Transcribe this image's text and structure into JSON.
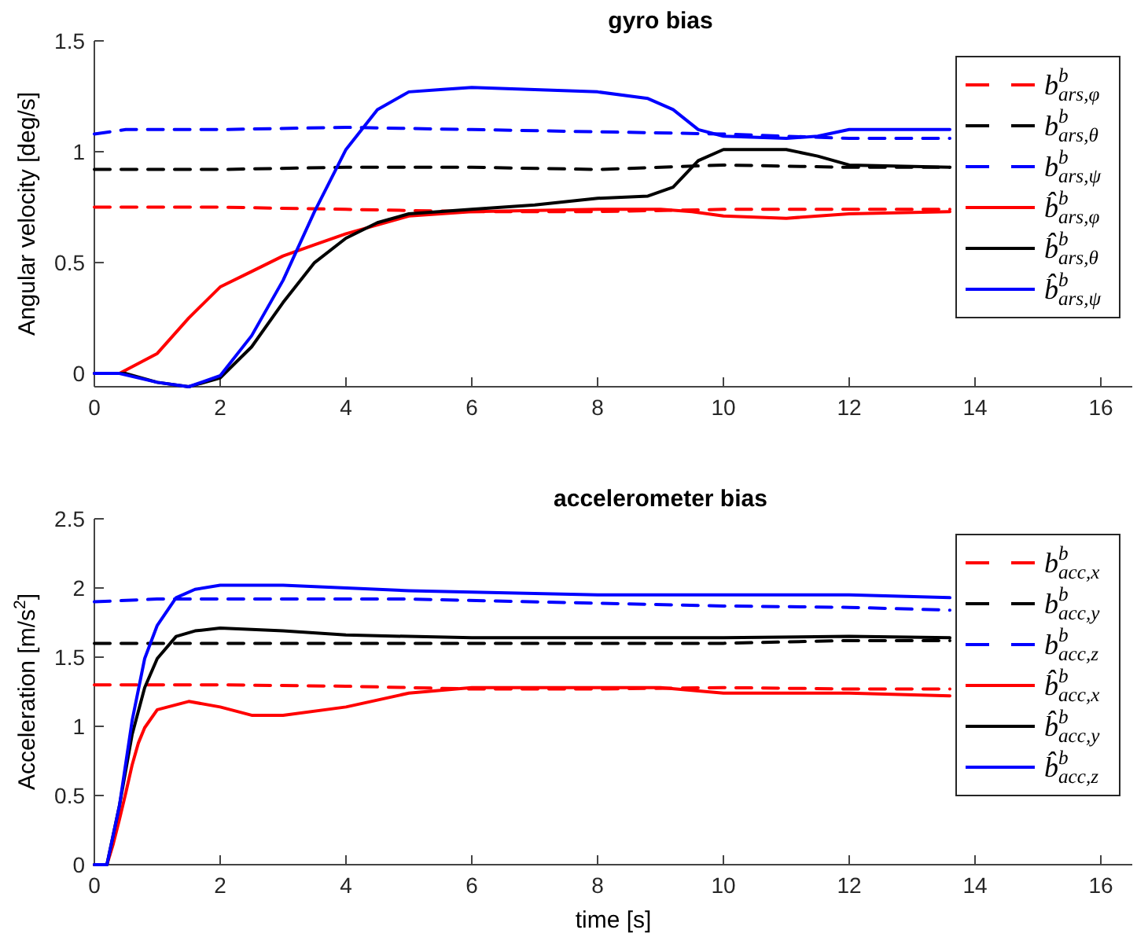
{
  "chart_data": [
    {
      "type": "line",
      "title": "gyro bias",
      "ylabel": "Angular velocity [deg/s]",
      "xlim": [
        0,
        16.5
      ],
      "xticks": [
        0,
        2,
        4,
        6,
        8,
        10,
        12,
        14,
        16
      ],
      "ylim": [
        -0.06,
        1.5
      ],
      "yticks": [
        0,
        0.5,
        1,
        1.5
      ],
      "grid": false,
      "legend": "top right",
      "series": [
        {
          "name": "b$^{b}$$_{ars,φ}$",
          "color": "#ff0000",
          "line_style": "dashed",
          "x": [
            0,
            2,
            4,
            6,
            8,
            10,
            12,
            13.6
          ],
          "values": [
            0.75,
            0.75,
            0.74,
            0.73,
            0.73,
            0.74,
            0.74,
            0.74
          ]
        },
        {
          "name": "b$^{b}$$_{ars,θ}$",
          "color": "#000000",
          "line_style": "dashed",
          "x": [
            0,
            2,
            4,
            6,
            8,
            10,
            12,
            13.6
          ],
          "values": [
            0.92,
            0.92,
            0.93,
            0.93,
            0.92,
            0.94,
            0.93,
            0.93
          ]
        },
        {
          "name": "b$^{b}$$_{ars,ψ}$",
          "color": "#0000ff",
          "line_style": "dashed",
          "x": [
            0,
            0.5,
            2,
            4,
            6,
            8,
            10,
            11,
            12,
            13.6
          ],
          "values": [
            1.08,
            1.1,
            1.1,
            1.11,
            1.1,
            1.09,
            1.08,
            1.07,
            1.06,
            1.06
          ]
        },
        {
          "name": "b̂$^{b}$$_{ars,φ}$",
          "color": "#ff0000",
          "line_style": "solid",
          "x": [
            0,
            0.4,
            1,
            1.5,
            2,
            2.5,
            3,
            3.5,
            4,
            4.5,
            5,
            6,
            8,
            9,
            9.5,
            10,
            11,
            12,
            13.6
          ],
          "values": [
            0,
            0,
            0.09,
            0.25,
            0.39,
            0.46,
            0.53,
            0.58,
            0.63,
            0.67,
            0.71,
            0.73,
            0.74,
            0.74,
            0.73,
            0.71,
            0.7,
            0.72,
            0.73
          ]
        },
        {
          "name": "b̂$^{b}$$_{ars,θ}$",
          "color": "#000000",
          "line_style": "solid",
          "x": [
            0,
            0.5,
            1,
            1.5,
            2,
            2.5,
            3,
            3.5,
            4,
            4.5,
            5,
            6,
            7,
            8,
            8.8,
            9.2,
            9.6,
            10,
            11,
            11.5,
            12,
            13.6
          ],
          "values": [
            0,
            0,
            -0.04,
            -0.06,
            -0.02,
            0.12,
            0.32,
            0.5,
            0.61,
            0.68,
            0.72,
            0.74,
            0.76,
            0.79,
            0.8,
            0.84,
            0.96,
            1.01,
            1.01,
            0.98,
            0.94,
            0.93
          ]
        },
        {
          "name": "b̂$^{b}$$_{ars,ψ}$",
          "color": "#0000ff",
          "line_style": "solid",
          "x": [
            0,
            0.4,
            1,
            1.5,
            2,
            2.5,
            3,
            3.5,
            4,
            4.5,
            5,
            5.5,
            6,
            7,
            8,
            8.8,
            9.2,
            9.6,
            10,
            11,
            11.5,
            12,
            13.6
          ],
          "values": [
            0,
            0,
            -0.04,
            -0.06,
            -0.01,
            0.17,
            0.42,
            0.73,
            1.01,
            1.19,
            1.27,
            1.28,
            1.29,
            1.28,
            1.27,
            1.24,
            1.19,
            1.1,
            1.07,
            1.06,
            1.07,
            1.1,
            1.1
          ]
        }
      ]
    },
    {
      "type": "line",
      "title": "accelerometer bias",
      "xlabel": "time [s]",
      "ylabel": "Acceleration [m/s$^{2}$]",
      "xlim": [
        0,
        16.5
      ],
      "xticks": [
        0,
        2,
        4,
        6,
        8,
        10,
        12,
        14,
        16
      ],
      "ylim": [
        0,
        2.5
      ],
      "yticks": [
        0,
        0.5,
        1,
        1.5,
        2,
        2.5
      ],
      "grid": false,
      "legend": "top right",
      "series": [
        {
          "name": "b$^{b}$$_{acc,x}$",
          "color": "#ff0000",
          "line_style": "dashed",
          "x": [
            0,
            2,
            4,
            6,
            8,
            10,
            12,
            13.6
          ],
          "values": [
            1.3,
            1.3,
            1.29,
            1.27,
            1.27,
            1.28,
            1.27,
            1.27
          ]
        },
        {
          "name": "b$^{b}$$_{acc,y}$",
          "color": "#000000",
          "line_style": "dashed",
          "x": [
            0,
            2,
            4,
            6,
            8,
            10,
            12,
            13.6
          ],
          "values": [
            1.6,
            1.6,
            1.6,
            1.6,
            1.6,
            1.6,
            1.62,
            1.62
          ]
        },
        {
          "name": "b$^{b}$$_{acc,z}$",
          "color": "#0000ff",
          "line_style": "dashed",
          "x": [
            0,
            1,
            3,
            5,
            8,
            10,
            12,
            13.6
          ],
          "values": [
            1.9,
            1.92,
            1.92,
            1.92,
            1.89,
            1.87,
            1.86,
            1.84
          ]
        },
        {
          "name": "b̂$^{b}$$_{acc,x}$",
          "color": "#ff0000",
          "line_style": "solid",
          "x": [
            0,
            0.2,
            0.3,
            0.4,
            0.5,
            0.6,
            0.7,
            0.8,
            1,
            1.5,
            2,
            2.5,
            3,
            4,
            5,
            6,
            8,
            9,
            10,
            12,
            13.6
          ],
          "values": [
            0,
            0,
            0.15,
            0.33,
            0.52,
            0.72,
            0.88,
            0.99,
            1.12,
            1.18,
            1.14,
            1.08,
            1.08,
            1.14,
            1.24,
            1.28,
            1.28,
            1.28,
            1.24,
            1.24,
            1.22
          ]
        },
        {
          "name": "b̂$^{b}$$_{acc,y}$",
          "color": "#000000",
          "line_style": "solid",
          "x": [
            0,
            0.2,
            0.4,
            0.6,
            0.8,
            1,
            1.3,
            1.6,
            2,
            3,
            4,
            6,
            8,
            10,
            12,
            13.6
          ],
          "values": [
            0,
            0,
            0.43,
            0.94,
            1.28,
            1.49,
            1.65,
            1.69,
            1.71,
            1.69,
            1.66,
            1.64,
            1.64,
            1.64,
            1.65,
            1.64
          ]
        },
        {
          "name": "b̂$^{b}$$_{acc,z}$",
          "color": "#0000ff",
          "line_style": "solid",
          "x": [
            0,
            0.2,
            0.4,
            0.6,
            0.8,
            1,
            1.3,
            1.6,
            2,
            3,
            5,
            8,
            10,
            12,
            13.6
          ],
          "values": [
            0,
            0,
            0.43,
            1.04,
            1.49,
            1.73,
            1.93,
            1.99,
            2.02,
            2.02,
            1.98,
            1.95,
            1.95,
            1.95,
            1.93
          ]
        }
      ]
    }
  ]
}
